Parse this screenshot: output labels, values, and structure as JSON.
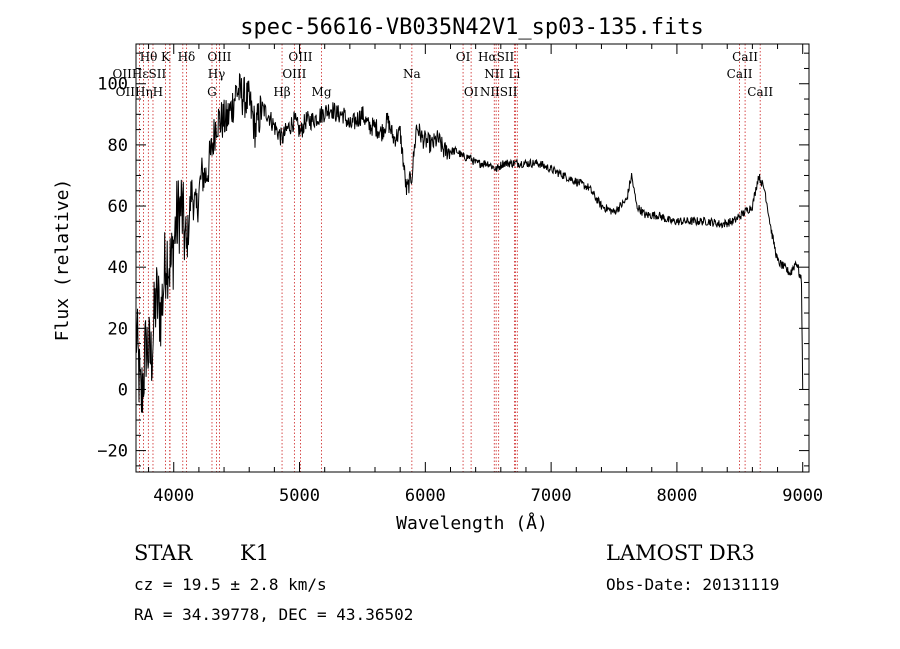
{
  "chart_data": {
    "type": "line",
    "title": "spec-56616-VB035N42V1_sp03-135.fits",
    "xlabel": "Wavelength (Å)",
    "ylabel": "Flux (relative)",
    "xlim": [
      3700,
      9050
    ],
    "ylim": [
      -27,
      113
    ],
    "x_ticks": [
      4000,
      5000,
      6000,
      7000,
      8000,
      9000
    ],
    "y_ticks": [
      -20,
      0,
      20,
      40,
      60,
      80,
      100
    ],
    "x_tick_labels": [
      "4000",
      "5000",
      "6000",
      "7000",
      "8000",
      "9000"
    ],
    "y_tick_labels": [
      "−20",
      "0",
      "20",
      "40",
      "60",
      "80",
      "100"
    ],
    "grid": false,
    "series": [
      {
        "name": "spectrum",
        "color": "#000000",
        "x": [
          3700,
          3740,
          3780,
          3820,
          3860,
          3900,
          3940,
          3980,
          4020,
          4060,
          4101,
          4140,
          4180,
          4220,
          4260,
          4300,
          4340,
          4380,
          4420,
          4460,
          4500,
          4550,
          4600,
          4650,
          4700,
          4750,
          4800,
          4861,
          4900,
          4960,
          5007,
          5050,
          5100,
          5175,
          5250,
          5300,
          5350,
          5400,
          5450,
          5500,
          5550,
          5600,
          5650,
          5700,
          5750,
          5800,
          5850,
          5893,
          5930,
          5980,
          6050,
          6100,
          6150,
          6200,
          6250,
          6300,
          6350,
          6400,
          6450,
          6500,
          6563,
          6620,
          6700,
          6800,
          6900,
          7000,
          7100,
          7200,
          7300,
          7400,
          7500,
          7600,
          7640,
          7680,
          7750,
          7850,
          7950,
          8050,
          8150,
          8250,
          8350,
          8450,
          8540,
          8600,
          8650,
          8700,
          8750,
          8800,
          8850,
          8900,
          8950,
          8990,
          9000
        ],
        "values": [
          20,
          -5,
          15,
          10,
          30,
          25,
          45,
          40,
          55,
          60,
          45,
          65,
          58,
          70,
          70,
          78,
          88,
          88,
          88,
          92,
          98,
          96,
          94,
          85,
          92,
          90,
          86,
          82,
          85,
          88,
          84,
          88,
          88,
          90,
          92,
          90,
          90,
          86,
          88,
          90,
          86,
          86,
          84,
          88,
          82,
          84,
          65,
          70,
          86,
          82,
          80,
          82,
          78,
          78,
          78,
          76,
          76,
          74,
          74,
          74,
          72,
          74,
          74,
          74,
          74,
          72,
          70,
          68,
          66,
          60,
          58,
          62,
          70,
          60,
          57,
          57,
          55,
          55,
          55,
          55,
          54,
          55,
          58,
          60,
          70,
          65,
          52,
          42,
          40,
          38,
          42,
          35,
          0
        ]
      }
    ],
    "lines": [
      {
        "name": "Hθ",
        "x": 3798
      },
      {
        "name": "OII",
        "x": 3727
      },
      {
        "name": "OIII",
        "x": 3760
      },
      {
        "name": "Hη",
        "x": 3835
      },
      {
        "name": "Hε",
        "x": 3970
      },
      {
        "name": "SII",
        "x": 4072
      },
      {
        "name": "K",
        "x": 3934
      },
      {
        "name": "H",
        "x": 3968
      },
      {
        "name": "Hδ",
        "x": 4101
      },
      {
        "name": "OIII",
        "x": 4363
      },
      {
        "name": "Hγ",
        "x": 4340
      },
      {
        "name": "G",
        "x": 4304
      },
      {
        "name": "Hβ",
        "x": 4861
      },
      {
        "name": "OIII",
        "x": 4959
      },
      {
        "name": "OIII",
        "x": 5007
      },
      {
        "name": "Mg",
        "x": 5175
      },
      {
        "name": "Na",
        "x": 5893
      },
      {
        "name": "OI",
        "x": 6300
      },
      {
        "name": "OI",
        "x": 6364
      },
      {
        "name": "NII",
        "x": 6548
      },
      {
        "name": "Hα",
        "x": 6563
      },
      {
        "name": "NII",
        "x": 6583
      },
      {
        "name": "Li",
        "x": 6708
      },
      {
        "name": "SII",
        "x": 6716
      },
      {
        "name": "SII",
        "x": 6731
      },
      {
        "name": "CaII",
        "x": 8498
      },
      {
        "name": "CaII",
        "x": 8542
      },
      {
        "name": "CaII",
        "x": 8662
      }
    ],
    "line_labels": [
      {
        "text": "Hθ",
        "row": 0,
        "x": 3800
      },
      {
        "text": "K",
        "row": 0,
        "x": 3934
      },
      {
        "text": "Hδ",
        "x": 4101,
        "row": 0
      },
      {
        "text": "OIII",
        "x": 4363,
        "row": 0
      },
      {
        "text": "OIII",
        "x": 5007,
        "row": 0
      },
      {
        "text": "OI",
        "x": 6300,
        "row": 0
      },
      {
        "text": "HαSII",
        "x": 6563,
        "row": 0
      },
      {
        "text": "CaII",
        "x": 8542,
        "row": 0
      },
      {
        "text": "OIIHεSII",
        "x": 3727,
        "row": 1
      },
      {
        "text": "Hγ",
        "x": 4340,
        "row": 1
      },
      {
        "text": "OIII",
        "x": 4959,
        "row": 1
      },
      {
        "text": "Na",
        "x": 5893,
        "row": 1
      },
      {
        "text": "NII",
        "x": 6548,
        "row": 1
      },
      {
        "text": "Li",
        "x": 6708,
        "row": 1
      },
      {
        "text": "CaII",
        "x": 8498,
        "row": 1
      },
      {
        "text": "OIIHηH",
        "x": 3727,
        "row": 2
      },
      {
        "text": "G",
        "x": 4304,
        "row": 2
      },
      {
        "text": "Hβ",
        "x": 4861,
        "row": 2
      },
      {
        "text": "Mg",
        "x": 5175,
        "row": 2
      },
      {
        "text": "OI",
        "x": 6364,
        "row": 2
      },
      {
        "text": "NIISII",
        "x": 6583,
        "row": 2
      },
      {
        "text": "CaII",
        "x": 8662,
        "row": 2
      }
    ]
  },
  "info": {
    "class": "STAR",
    "subclass": "K1",
    "survey": "LAMOST DR3",
    "cz": "cz = 19.5 ± 2.8 km/s",
    "obs_date": "Obs-Date: 20131119",
    "coords": "RA =  34.39778, DEC =  43.36502"
  },
  "colors": {
    "line_marker": "#cc2222",
    "spectrum": "#000000",
    "axes": "#000000"
  }
}
